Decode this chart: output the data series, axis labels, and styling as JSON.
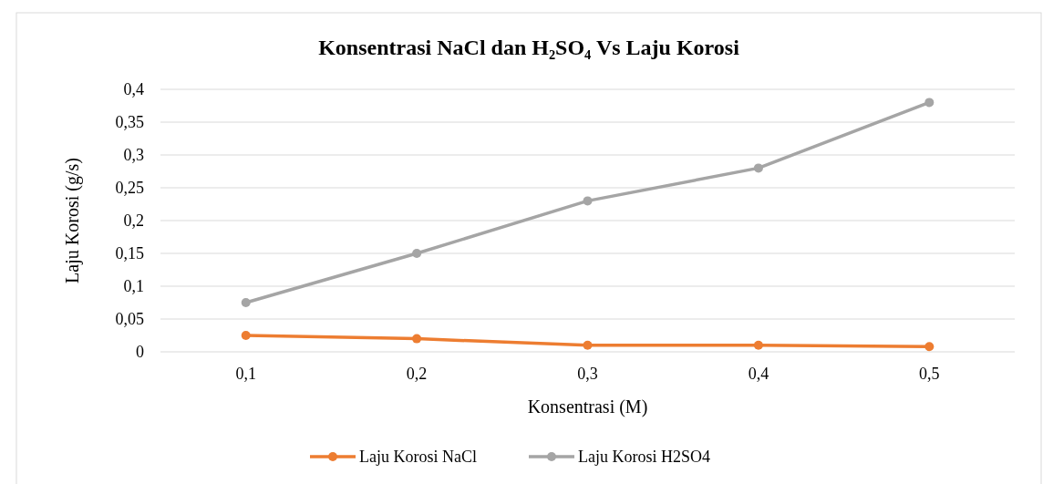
{
  "chart_data": {
    "type": "line",
    "title": "Konsentrasi NaCl dan H₂SO₄ Vs Laju Korosi",
    "xlabel": "Konsentrasi (M)",
    "ylabel": "Laju Korosi (g/s)",
    "categories": [
      "0,1",
      "0,2",
      "0,3",
      "0,4",
      "0,5"
    ],
    "series": [
      {
        "name": "Laju Korosi NaCl",
        "color": "#ed7d31",
        "values": [
          0.025,
          0.02,
          0.01,
          0.01,
          0.008
        ]
      },
      {
        "name": "Laju Korosi H2SO4",
        "color": "#a5a5a5",
        "values": [
          0.075,
          0.15,
          0.23,
          0.28,
          0.38
        ]
      }
    ],
    "ylim": [
      0,
      0.4
    ],
    "yticks": [
      0,
      {
        "value": 0.05,
        "label": "0,05"
      },
      {
        "value": 0.1,
        "label": "0,1"
      },
      {
        "value": 0.15,
        "label": "0,15"
      },
      {
        "value": 0.2,
        "label": "0,2"
      },
      {
        "value": 0.25,
        "label": "0,25"
      },
      {
        "value": 0.3,
        "label": "0,3"
      },
      {
        "value": 0.35,
        "label": "0,35"
      },
      {
        "value": 0.4,
        "label": "0,4"
      }
    ],
    "grid": "y",
    "legend": "bottom",
    "marker": "circle",
    "line_style": "solid"
  }
}
